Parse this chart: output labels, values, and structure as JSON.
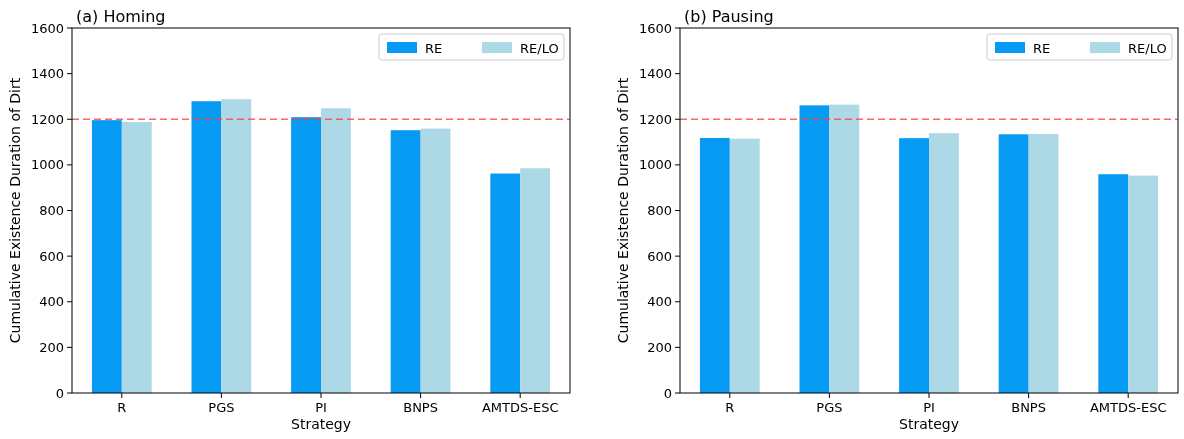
{
  "chart_data": [
    {
      "type": "bar",
      "title": "(a) Homing",
      "xlabel": "Strategy",
      "ylabel": "Cumulative Existence Duration of Dirt",
      "categories": [
        "R",
        "PGS",
        "PI",
        "BNPS",
        "AMTDS-ESC"
      ],
      "series": [
        {
          "name": "RE",
          "color": "#069af3",
          "values": [
            1196,
            1279,
            1209,
            1152,
            962
          ]
        },
        {
          "name": "RE/LO",
          "color": "#add8e6",
          "values": [
            1188,
            1288,
            1248,
            1159,
            985
          ]
        }
      ],
      "ylim": [
        0,
        1600
      ],
      "yticks": [
        0,
        200,
        400,
        600,
        800,
        1000,
        1200,
        1400,
        1600
      ],
      "grid": false,
      "legend": "top right",
      "ref_lines": [
        {
          "axis": "y",
          "value": 1200,
          "color": "#ff4040",
          "line_style": "dashed"
        }
      ]
    },
    {
      "type": "bar",
      "title": "(b) Pausing",
      "xlabel": "Strategy",
      "ylabel": "Cumulative Existence Duration of Dirt",
      "categories": [
        "R",
        "PGS",
        "PI",
        "BNPS",
        "AMTDS-ESC"
      ],
      "series": [
        {
          "name": "RE",
          "color": "#069af3",
          "values": [
            1118,
            1261,
            1117,
            1134,
            959
          ]
        },
        {
          "name": "RE/LO",
          "color": "#add8e6",
          "values": [
            1115,
            1264,
            1139,
            1136,
            953
          ]
        }
      ],
      "ylim": [
        0,
        1600
      ],
      "yticks": [
        0,
        200,
        400,
        600,
        800,
        1000,
        1200,
        1400,
        1600
      ],
      "grid": false,
      "legend": "top right",
      "ref_lines": [
        {
          "axis": "y",
          "value": 1200,
          "color": "#ff4040",
          "line_style": "dashed"
        }
      ]
    }
  ]
}
